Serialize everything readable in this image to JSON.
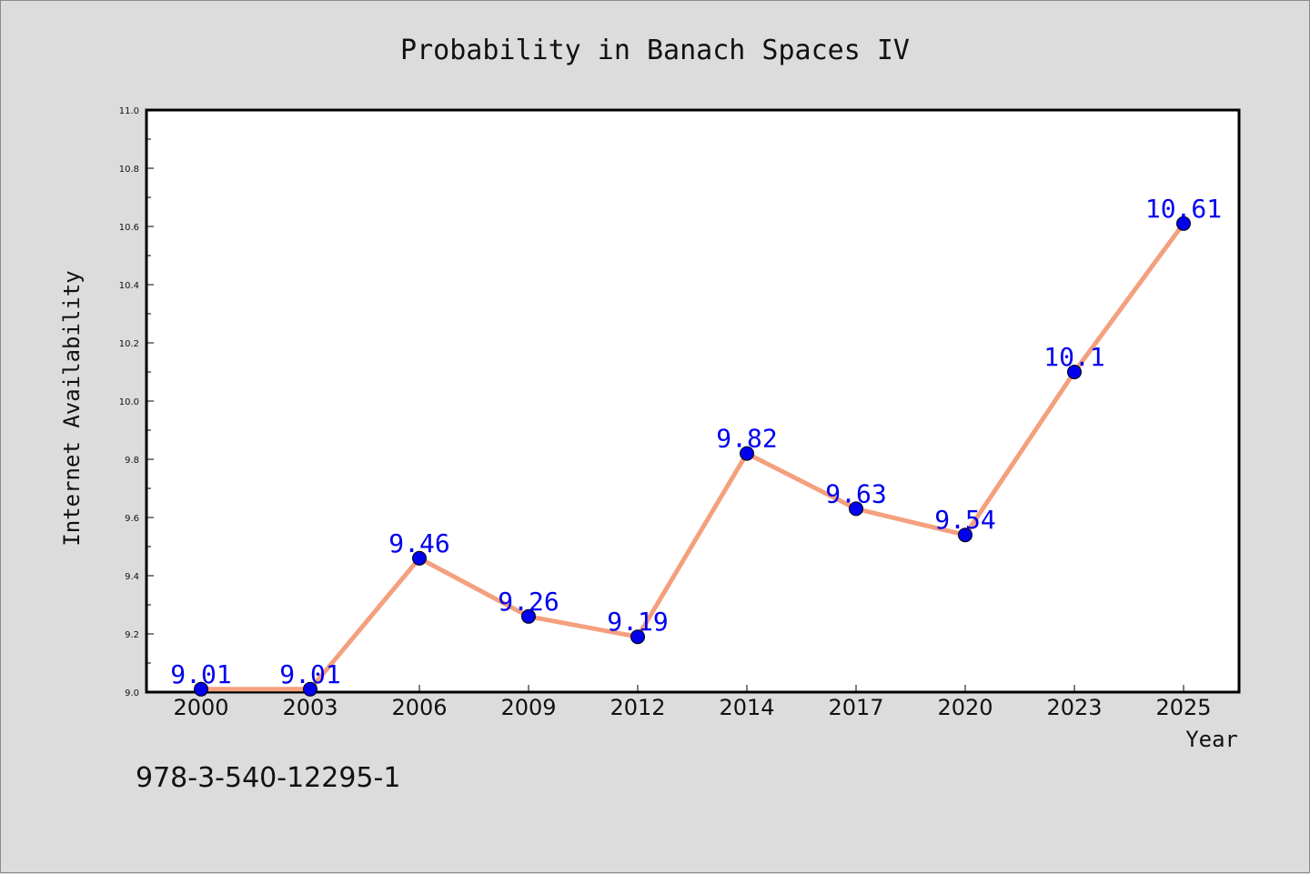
{
  "chart_data": {
    "type": "line",
    "title": "Probability in Banach Spaces IV",
    "xlabel": "Year",
    "ylabel": "Internet Availability",
    "categories": [
      "2000",
      "2003",
      "2006",
      "2009",
      "2012",
      "2014",
      "2017",
      "2020",
      "2023",
      "2025"
    ],
    "series": [
      {
        "values": [
          9.01,
          9.01,
          9.46,
          9.26,
          9.19,
          9.82,
          9.63,
          9.54,
          10.1,
          10.61
        ],
        "labels": [
          "9.01",
          "9.01",
          "9.46",
          "9.26",
          "9.19",
          "9.82",
          "9.63",
          "9.54",
          "10.1",
          "10.61"
        ],
        "line_color": "#f4a07e",
        "marker_color": "#0000ee",
        "label_color": "#0000ee"
      }
    ],
    "ylim": [
      9.0,
      11.0
    ],
    "yticks": [
      "9.0",
      "9.2",
      "9.4",
      "9.6",
      "9.8",
      "10.0",
      "10.2",
      "10.4",
      "10.6",
      "10.8",
      "11.0"
    ],
    "grid": false,
    "legend": "none",
    "annotation": "978-3-540-12295-1"
  }
}
